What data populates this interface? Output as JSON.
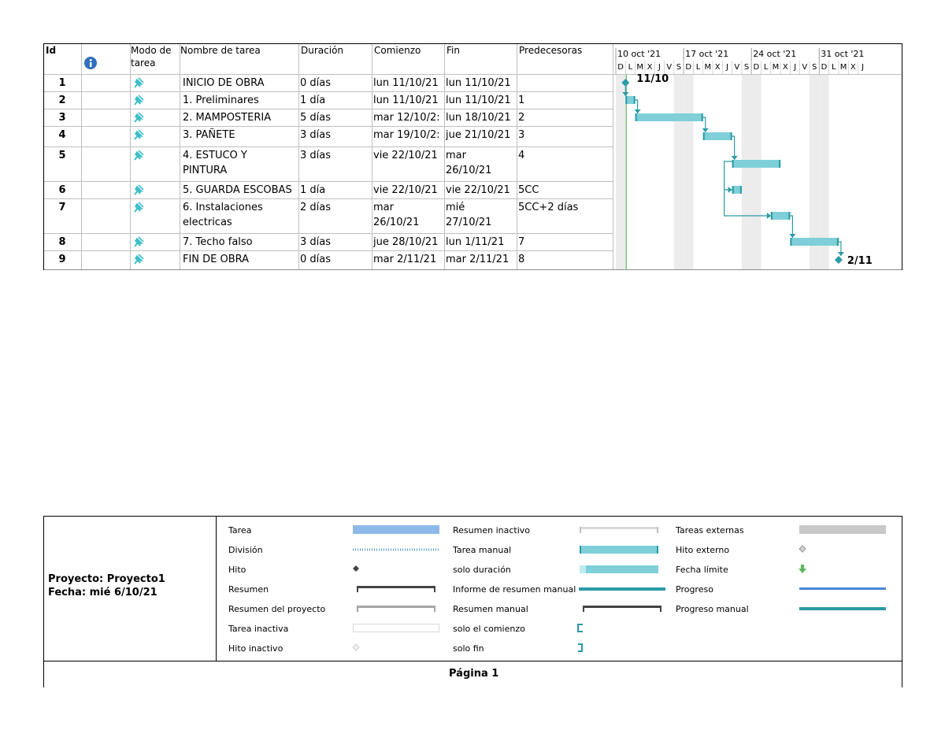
{
  "columns": {
    "id": "Id",
    "info": "info-icon",
    "mode_line1": "Modo de",
    "mode_line2": "tarea",
    "name": "Nombre de tarea",
    "duration": "Duración",
    "start": "Comienzo",
    "finish": "Fin",
    "predecessors": "Predecesoras"
  },
  "tasks": [
    {
      "id": "1",
      "name1": "INICIO DE OBRA",
      "name2": "",
      "dur": "0 días",
      "start1": "lun 11/10/21",
      "start2": "",
      "fin1": "lun 11/10/21",
      "fin2": "",
      "pred": ""
    },
    {
      "id": "2",
      "name1": "1.  Preliminares",
      "name2": "",
      "dur": "1 día",
      "start1": "lun 11/10/21",
      "start2": "",
      "fin1": "lun 11/10/21",
      "fin2": "",
      "pred": "1"
    },
    {
      "id": "3",
      "name1": "2. MAMPOSTERIA",
      "name2": "",
      "dur": "5 días",
      "start1": "mar 12/10/2:",
      "start2": "",
      "fin1": "lun 18/10/21",
      "fin2": "",
      "pred": "2"
    },
    {
      "id": "4",
      "name1": "3. PAÑETE",
      "name2": "",
      "dur": "3 días",
      "start1": "mar 19/10/2:",
      "start2": "",
      "fin1": "jue 21/10/21",
      "fin2": "",
      "pred": "3"
    },
    {
      "id": "5",
      "name1": "4. ESTUCO Y",
      "name2": "PINTURA",
      "dur": "3 días",
      "start1": "vie 22/10/21",
      "start2": "",
      "fin1": "mar",
      "fin2": "26/10/21",
      "pred": "4"
    },
    {
      "id": "6",
      "name1": "5. GUARDA ESCOBAS",
      "name2": "",
      "dur": "1 día",
      "start1": "vie 22/10/21",
      "start2": "",
      "fin1": "vie 22/10/21",
      "fin2": "",
      "pred": "5CC"
    },
    {
      "id": "7",
      "name1": "6. Instalaciones",
      "name2": "electricas",
      "dur": "2 días",
      "start1": "mar",
      "start2": "26/10/21",
      "fin1": "mié",
      "fin2": "27/10/21",
      "pred": "5CC+2 días"
    },
    {
      "id": "8",
      "name1": "7. Techo falso",
      "name2": "",
      "dur": "3 días",
      "start1": "jue 28/10/21",
      "start2": "",
      "fin1": "lun 1/11/21",
      "fin2": "",
      "pred": "7"
    },
    {
      "id": "9",
      "name1": "FIN DE OBRA",
      "name2": "",
      "dur": "0 días",
      "start1": "mar 2/11/21",
      "start2": "",
      "fin1": "mar 2/11/21",
      "fin2": "",
      "pred": "8"
    }
  ],
  "timeline": {
    "weeks": [
      "10 oct '21",
      "17 oct '21",
      "24 oct '21",
      "31 oct '21"
    ],
    "days": [
      "D",
      "L",
      "M",
      "X",
      "J",
      "V",
      "S",
      "D",
      "L",
      "M",
      "X",
      "J",
      "V",
      "S",
      "D",
      "L",
      "M",
      "X",
      "J",
      "V",
      "S",
      "D",
      "L",
      "M",
      "X",
      "J"
    ],
    "milestone_start_label": "11/10",
    "milestone_end_label": "2/11",
    "bar_color": "#7ecfd8",
    "bar_edge_color": "#2a9aa5"
  },
  "legend": {
    "project_line": "Proyecto: Proyecto1",
    "date_line": "Fecha: mié 6/10/21",
    "col1": [
      "Tarea",
      "División",
      "Hito",
      "Resumen",
      "Resumen del proyecto",
      "Tarea inactiva",
      "Hito inactivo"
    ],
    "col2": [
      "Resumen inactivo",
      "Tarea manual",
      "solo duración",
      "Informe de resumen manual",
      "Resumen manual",
      "solo el comienzo",
      "solo fin"
    ],
    "col3": [
      "Tareas externas",
      "Hito externo",
      "Fecha límite",
      "Progreso",
      "Progreso manual"
    ]
  },
  "footer": {
    "page": "Página 1"
  }
}
